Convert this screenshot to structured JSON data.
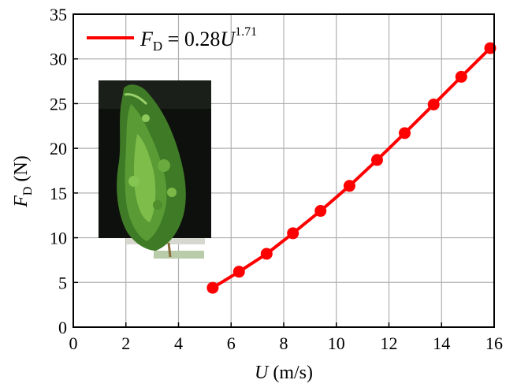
{
  "chart_data": {
    "type": "line",
    "legend": {
      "placement": "top-left",
      "prefix_italic": "F",
      "prefix_sub": "D",
      "equals_text": " = 0.28",
      "var_italic": "U",
      "exponent": "1.71"
    },
    "xlabel": {
      "italic": "U",
      "rest": " (m/s)"
    },
    "ylabel": {
      "italic": "F",
      "sub": "D",
      "rest": " (N)"
    },
    "xlim": [
      0,
      16
    ],
    "ylim": [
      0,
      35
    ],
    "xticks": [
      0,
      2,
      4,
      6,
      8,
      10,
      12,
      14,
      16
    ],
    "yticks": [
      0,
      5,
      10,
      15,
      20,
      25,
      30,
      35
    ],
    "grid": true,
    "series": [
      {
        "color": "#ff0000",
        "points": [
          {
            "x": 5.3,
            "y": 4.4
          },
          {
            "x": 6.3,
            "y": 6.2
          },
          {
            "x": 7.35,
            "y": 8.2
          },
          {
            "x": 8.35,
            "y": 10.5
          },
          {
            "x": 9.4,
            "y": 13.0
          },
          {
            "x": 10.5,
            "y": 15.8
          },
          {
            "x": 11.55,
            "y": 18.7
          },
          {
            "x": 12.6,
            "y": 21.7
          },
          {
            "x": 13.7,
            "y": 24.9
          },
          {
            "x": 14.75,
            "y": 28.0
          },
          {
            "x": 15.85,
            "y": 31.2
          }
        ]
      }
    ],
    "inset_image": "photo of a leafy green shrub"
  }
}
